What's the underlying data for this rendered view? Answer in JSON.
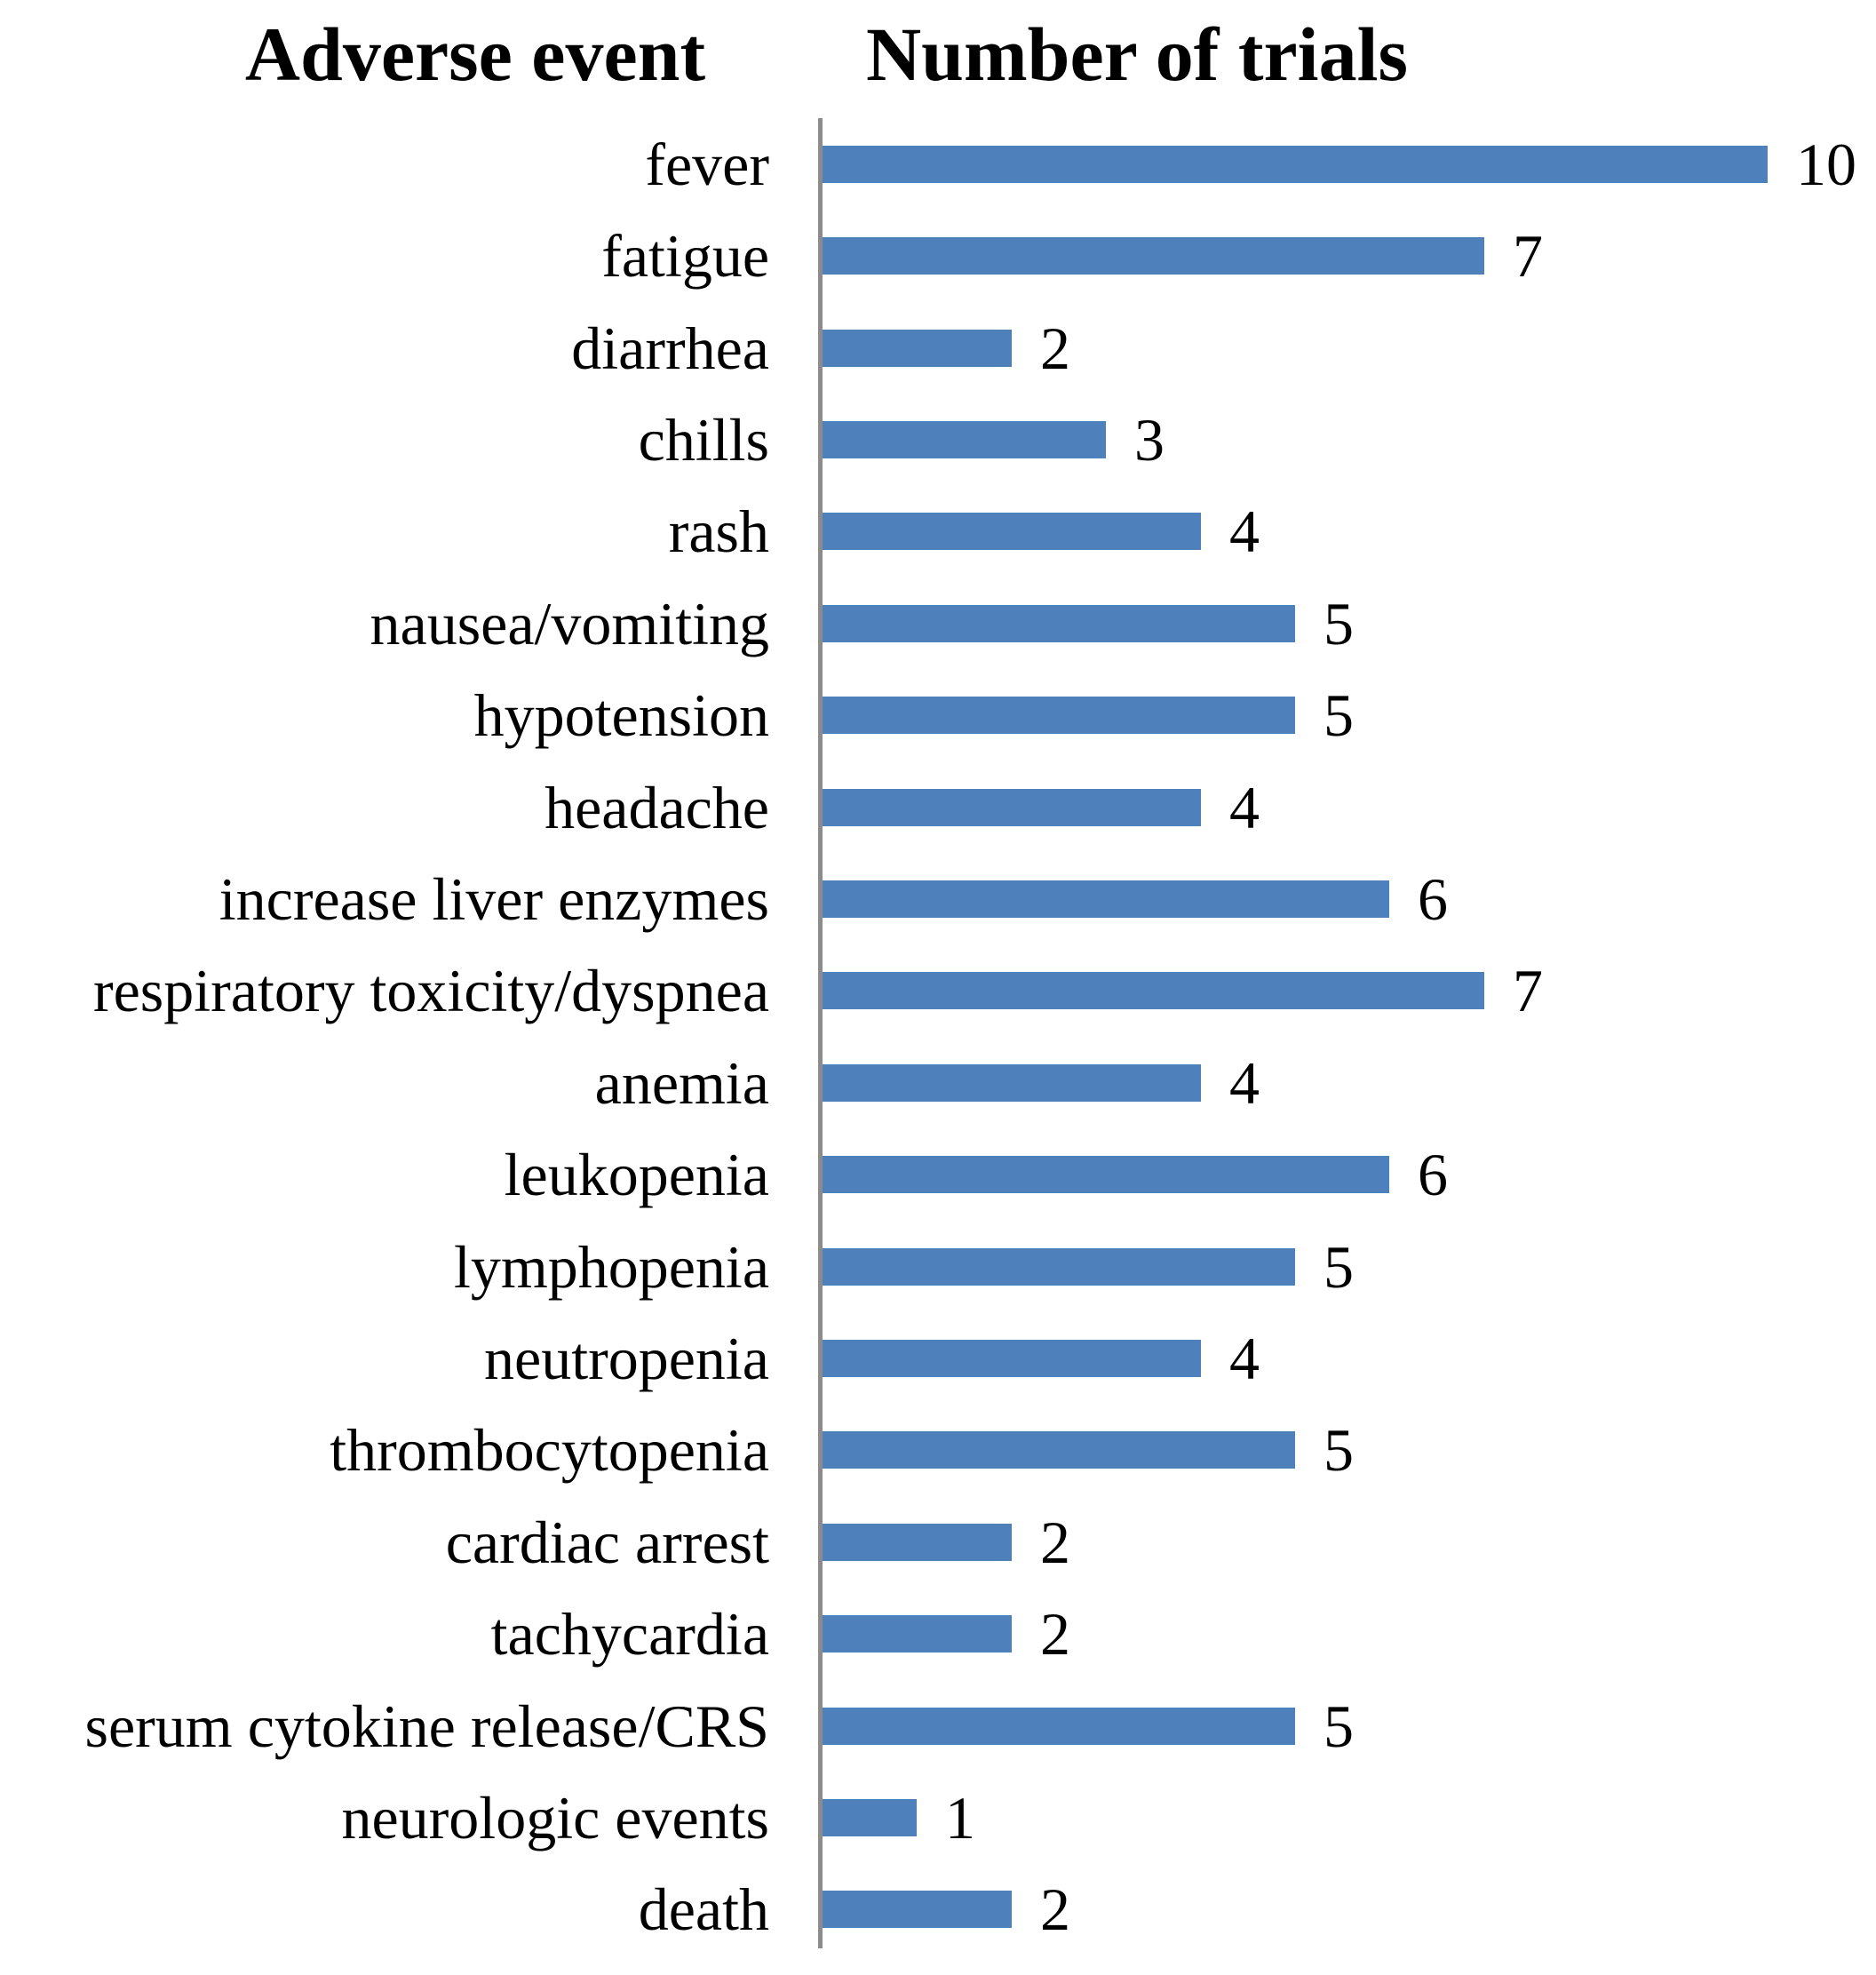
{
  "figure": {
    "left_header": "Adverse event",
    "right_header": "Number of trials"
  },
  "colors": {
    "bar": "#4E81BC",
    "axis": "#8C8C8C",
    "text": "#000000",
    "background": "#FFFFFF"
  },
  "chart_data": {
    "type": "bar",
    "orientation": "horizontal",
    "title": "",
    "col_header_left": "Adverse event",
    "col_header_right": "Number of trials",
    "categories": [
      "fever",
      "fatigue",
      "diarrhea",
      "chills",
      "rash",
      "nausea/vomiting",
      "hypotension",
      "headache",
      "increase liver enzymes",
      "respiratory toxicity/dyspnea",
      "anemia",
      "leukopenia",
      "lymphopenia",
      "neutropenia",
      "thrombocytopenia",
      "cardiac arrest",
      "tachycardia",
      "serum cytokine release/CRS",
      "neurologic events",
      "death"
    ],
    "values": [
      10,
      7,
      2,
      3,
      4,
      5,
      5,
      4,
      6,
      7,
      4,
      6,
      5,
      4,
      5,
      2,
      2,
      5,
      1,
      2
    ],
    "xlim": [
      0,
      11
    ],
    "grid": false,
    "legend": "none",
    "value_labels_shown": true
  }
}
